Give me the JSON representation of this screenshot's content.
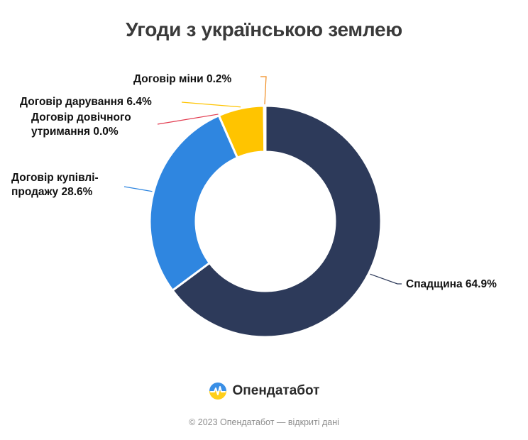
{
  "chart_data": {
    "type": "pie",
    "title": "Угоди з українською землею",
    "slices": [
      {
        "label": "Спадщина 64.9%",
        "value": 64.9,
        "color": "#2d3a5a"
      },
      {
        "label": "Договір купівлі-продажу 28.6%",
        "value": 28.6,
        "color": "#2f86e0"
      },
      {
        "label": "Договір довічного утримання 0.0%",
        "value": 0.0,
        "color": "#e23a4e"
      },
      {
        "label": "Договір дарування 6.4%",
        "value": 6.4,
        "color": "#ffc400"
      },
      {
        "label": "Договір міни 0.2%",
        "value": 0.2,
        "color": "#f08a1c"
      }
    ],
    "label_lines": [
      [
        "Спадщина 64.9%"
      ],
      [
        "Договір купівлі-",
        "продажу 28.6%"
      ],
      [
        "Договір довічного",
        "утримання 0.0%"
      ],
      [
        "Договір дарування 6.4%"
      ],
      [
        "Договір міни 0.2%"
      ]
    ]
  },
  "brand": {
    "name": "Опендатабот",
    "logo_icon": "opendatabot-logo-icon"
  },
  "footer": {
    "text": "© 2023 Опендатабот — відкриті дані"
  }
}
